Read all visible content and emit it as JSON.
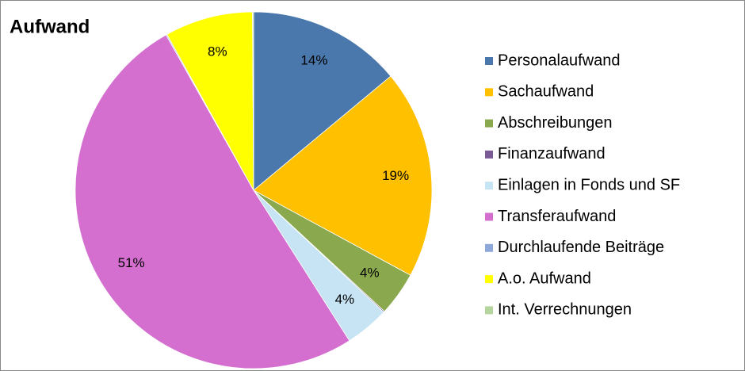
{
  "chart_data": {
    "type": "pie",
    "title": "Aufwand",
    "categories": [
      "Personalaufwand",
      "Sachaufwand",
      "Abschreibungen",
      "Finanzaufwand",
      "Einlagen in Fonds und SF",
      "Transferaufwand",
      "Durchlaufende Beiträge",
      "A.o. Aufwand",
      "Int. Verrechnungen"
    ],
    "values": [
      14,
      19,
      4,
      0.1,
      4,
      51,
      0.1,
      8,
      0.1
    ],
    "value_labels": [
      "14%",
      "19%",
      "4%",
      null,
      "4%",
      "51%",
      null,
      "8%",
      null
    ],
    "colors": [
      "#4a78ac",
      "#ffc000",
      "#8aa84e",
      "#7b5b95",
      "#c6e4f4",
      "#d46fcf",
      "#8ea9d9",
      "#ffff00",
      "#b5d59e"
    ],
    "legend": "right"
  }
}
